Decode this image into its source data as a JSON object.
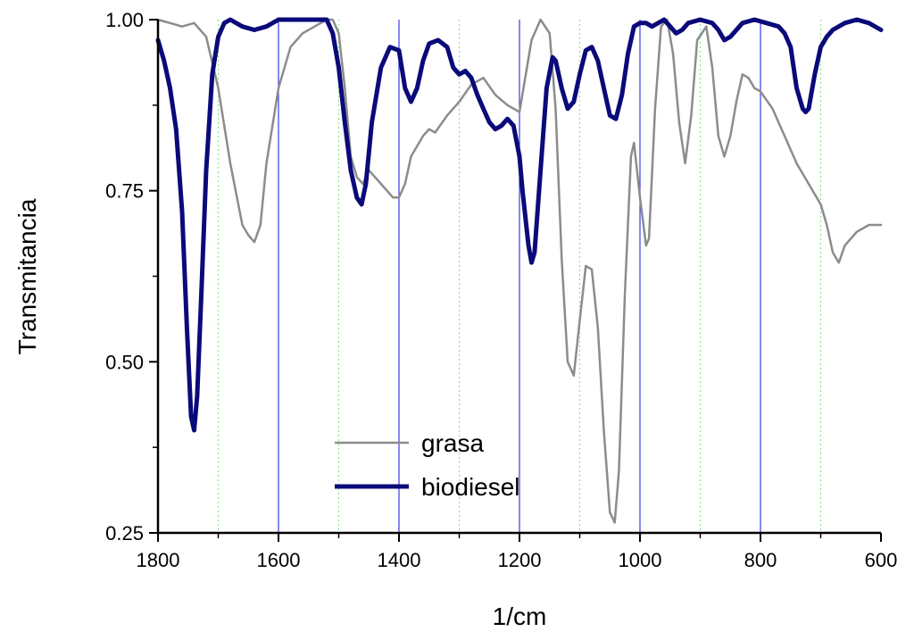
{
  "chart_data": {
    "type": "line",
    "title": "",
    "xlabel": "1/cm",
    "ylabel": "Transmitancia",
    "xlim": [
      1800,
      600
    ],
    "ylim": [
      0.25,
      1.0
    ],
    "x_reversed": true,
    "x_ticks": [
      "1800",
      "1600",
      "1400",
      "1200",
      "1000",
      "800",
      "600"
    ],
    "y_ticks": [
      "0.25",
      "0.50",
      "0.75",
      "1.00"
    ],
    "grid": "vertical: solid blue at 1600, 1400, 1200, 1000, 800; dotted green at 1700, 1500, 1300, 1100, 900, 700",
    "legend": {
      "position": "bottom-center"
    },
    "colors": {
      "grasa": "#8c8c8c",
      "biodiesel": "#0a0a7a",
      "major_grid": "#3b3be8",
      "minor_grid": "#7fe07f"
    },
    "series": [
      {
        "name": "grasa",
        "x": [
          1800,
          1780,
          1760,
          1740,
          1720,
          1700,
          1680,
          1660,
          1650,
          1640,
          1630,
          1620,
          1600,
          1580,
          1560,
          1540,
          1520,
          1510,
          1500,
          1490,
          1480,
          1470,
          1460,
          1450,
          1430,
          1410,
          1400,
          1390,
          1380,
          1360,
          1350,
          1340,
          1320,
          1300,
          1280,
          1260,
          1240,
          1220,
          1200,
          1180,
          1165,
          1150,
          1140,
          1130,
          1120,
          1110,
          1100,
          1090,
          1080,
          1070,
          1060,
          1050,
          1042,
          1035,
          1025,
          1015,
          1010,
          1000,
          990,
          985,
          975,
          965,
          955,
          945,
          935,
          925,
          915,
          905,
          890,
          880,
          870,
          860,
          850,
          840,
          830,
          820,
          810,
          800,
          780,
          760,
          740,
          720,
          700,
          690,
          680,
          670,
          660,
          640,
          620,
          600
        ],
        "values": [
          1.0,
          0.995,
          0.99,
          0.995,
          0.975,
          0.9,
          0.79,
          0.7,
          0.685,
          0.675,
          0.7,
          0.79,
          0.9,
          0.96,
          0.98,
          0.99,
          1.0,
          1.0,
          0.98,
          0.9,
          0.8,
          0.77,
          0.76,
          0.78,
          0.76,
          0.74,
          0.74,
          0.76,
          0.8,
          0.83,
          0.84,
          0.835,
          0.86,
          0.88,
          0.905,
          0.915,
          0.89,
          0.875,
          0.865,
          0.97,
          1.0,
          0.98,
          0.87,
          0.65,
          0.5,
          0.48,
          0.56,
          0.64,
          0.635,
          0.55,
          0.4,
          0.28,
          0.265,
          0.34,
          0.6,
          0.8,
          0.82,
          0.74,
          0.67,
          0.68,
          0.87,
          0.99,
          1.0,
          0.95,
          0.85,
          0.79,
          0.86,
          0.97,
          0.99,
          0.93,
          0.83,
          0.8,
          0.83,
          0.88,
          0.92,
          0.915,
          0.9,
          0.895,
          0.87,
          0.83,
          0.79,
          0.76,
          0.73,
          0.7,
          0.66,
          0.645,
          0.67,
          0.69,
          0.7,
          0.7
        ]
      },
      {
        "name": "biodiesel",
        "x": [
          1800,
          1790,
          1780,
          1770,
          1760,
          1752,
          1745,
          1740,
          1735,
          1728,
          1720,
          1710,
          1700,
          1690,
          1680,
          1660,
          1640,
          1620,
          1600,
          1580,
          1560,
          1540,
          1520,
          1510,
          1500,
          1490,
          1480,
          1470,
          1462,
          1455,
          1445,
          1430,
          1415,
          1400,
          1390,
          1380,
          1370,
          1360,
          1350,
          1335,
          1320,
          1310,
          1300,
          1290,
          1280,
          1270,
          1260,
          1250,
          1240,
          1230,
          1220,
          1210,
          1200,
          1195,
          1185,
          1180,
          1175,
          1165,
          1155,
          1145,
          1140,
          1130,
          1120,
          1110,
          1100,
          1090,
          1080,
          1070,
          1060,
          1050,
          1040,
          1030,
          1020,
          1010,
          1000,
          990,
          980,
          970,
          960,
          950,
          940,
          930,
          920,
          900,
          880,
          870,
          860,
          850,
          830,
          810,
          790,
          770,
          760,
          750,
          740,
          730,
          725,
          720,
          710,
          700,
          690,
          680,
          660,
          640,
          620,
          600
        ],
        "values": [
          0.97,
          0.94,
          0.9,
          0.84,
          0.72,
          0.55,
          0.42,
          0.4,
          0.45,
          0.6,
          0.78,
          0.92,
          0.975,
          0.995,
          1.0,
          0.99,
          0.985,
          0.99,
          1.0,
          1.0,
          1.0,
          1.0,
          1.0,
          0.98,
          0.93,
          0.85,
          0.78,
          0.74,
          0.73,
          0.76,
          0.85,
          0.93,
          0.96,
          0.955,
          0.9,
          0.88,
          0.9,
          0.94,
          0.965,
          0.97,
          0.96,
          0.93,
          0.92,
          0.925,
          0.915,
          0.89,
          0.87,
          0.85,
          0.84,
          0.845,
          0.855,
          0.845,
          0.8,
          0.75,
          0.67,
          0.645,
          0.66,
          0.78,
          0.9,
          0.945,
          0.94,
          0.9,
          0.87,
          0.88,
          0.92,
          0.955,
          0.96,
          0.94,
          0.9,
          0.86,
          0.855,
          0.89,
          0.95,
          0.99,
          0.995,
          0.995,
          0.99,
          0.995,
          1.0,
          0.99,
          0.98,
          0.985,
          0.995,
          1.0,
          0.995,
          0.985,
          0.97,
          0.975,
          0.995,
          1.0,
          0.995,
          0.99,
          0.98,
          0.96,
          0.9,
          0.87,
          0.865,
          0.87,
          0.92,
          0.96,
          0.975,
          0.985,
          0.995,
          1.0,
          0.995,
          0.985
        ]
      }
    ]
  }
}
